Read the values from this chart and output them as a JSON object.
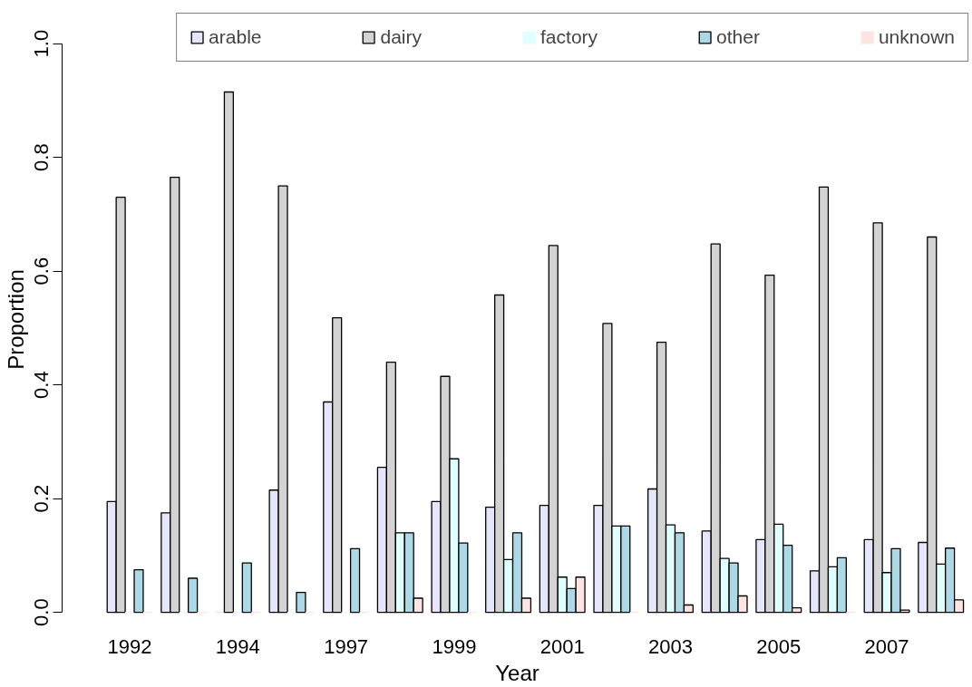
{
  "chart_data": {
    "type": "bar",
    "xlabel": "Year",
    "ylabel": "Proportion",
    "categories": [
      "1992",
      null,
      "1994",
      null,
      "1997",
      null,
      "1999",
      null,
      "2001",
      null,
      "2003",
      null,
      "2005",
      null,
      "2007",
      null
    ],
    "series": [
      {
        "name": "arable",
        "color": "#e6e6fa",
        "values": [
          0.195,
          0.175,
          0,
          0.215,
          0.37,
          0.255,
          0.195,
          0.185,
          0.188,
          0.188,
          0.217,
          0.143,
          0.128,
          0.073,
          0.128,
          0.123
        ]
      },
      {
        "name": "dairy",
        "color": "#d3d3d3",
        "values": [
          0.73,
          0.765,
          0.915,
          0.75,
          0.518,
          0.44,
          0.415,
          0.558,
          0.645,
          0.508,
          0.475,
          0.648,
          0.593,
          0.748,
          0.685,
          0.66
        ]
      },
      {
        "name": "factory",
        "color": "#e0ffff",
        "values": [
          0,
          0,
          0,
          0,
          0,
          0.14,
          0.27,
          0.093,
          0.062,
          0.152,
          0.154,
          0.095,
          0.155,
          0.08,
          0.07,
          0.085
        ]
      },
      {
        "name": "other",
        "color": "#add8e6",
        "values": [
          0.075,
          0.06,
          0.087,
          0.035,
          0.112,
          0.14,
          0.122,
          0.14,
          0.042,
          0.152,
          0.14,
          0.087,
          0.118,
          0.096,
          0.112,
          0.113
        ]
      },
      {
        "name": "unknown",
        "color": "#ffe4e1",
        "values": [
          0,
          0,
          0,
          0,
          0,
          0.025,
          0,
          0.025,
          0.062,
          0,
          0.013,
          0.029,
          0.008,
          0,
          0.004,
          0.022
        ]
      }
    ],
    "ylim": [
      0,
      1
    ],
    "yticks": [
      {
        "value": 0,
        "label": "0.0"
      },
      {
        "value": 0.2,
        "label": "0.2"
      },
      {
        "value": 0.4,
        "label": "0.4"
      },
      {
        "value": 0.6,
        "label": "0.6"
      },
      {
        "value": 0.8,
        "label": "0.8"
      },
      {
        "value": 1,
        "label": "1.0"
      }
    ],
    "legend": "top right"
  }
}
